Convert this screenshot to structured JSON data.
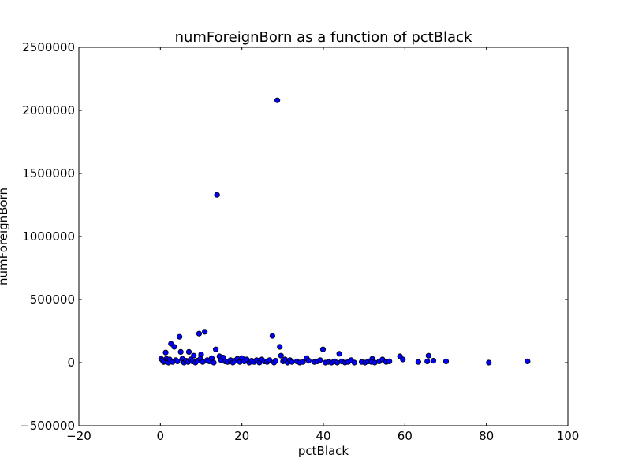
{
  "chart_data": {
    "type": "scatter",
    "title": "numForeignBorn as a function of pctBlack",
    "xlabel": "pctBlack",
    "ylabel": "numForeignBorn",
    "xlim": [
      -20,
      100
    ],
    "ylim": [
      -500000,
      2500000
    ],
    "xticks": [
      -20,
      0,
      20,
      40,
      60,
      80,
      100
    ],
    "yticks": [
      -500000,
      0,
      500000,
      1000000,
      1500000,
      2000000,
      2500000
    ],
    "x_tick_labels": [
      "−20",
      "0",
      "20",
      "40",
      "60",
      "80",
      "100"
    ],
    "y_tick_labels": [
      "−500000",
      "0",
      "500000",
      "1000000",
      "1500000",
      "2000000",
      "2500000"
    ],
    "grid": false,
    "marker_color": "#0000ff",
    "marker_edge": "#000000",
    "points": [
      [
        28.7,
        2080000
      ],
      [
        13.9,
        1330000
      ],
      [
        10.9,
        245000
      ],
      [
        9.5,
        230000
      ],
      [
        27.5,
        212000
      ],
      [
        4.7,
        205000
      ],
      [
        2.6,
        150000
      ],
      [
        3.4,
        125000
      ],
      [
        29.3,
        125000
      ],
      [
        13.6,
        105000
      ],
      [
        39.9,
        105000
      ],
      [
        5.0,
        85000
      ],
      [
        7.0,
        85000
      ],
      [
        1.3,
        80000
      ],
      [
        43.9,
        70000
      ],
      [
        10.0,
        65000
      ],
      [
        8.2,
        55000
      ],
      [
        14.5,
        50000
      ],
      [
        29.6,
        55000
      ],
      [
        58.8,
        50000
      ],
      [
        65.8,
        55000
      ],
      [
        35.9,
        35000
      ],
      [
        52.0,
        30000
      ],
      [
        59.5,
        25000
      ],
      [
        0.2,
        30000
      ],
      [
        0.5,
        20000
      ],
      [
        0.8,
        5000
      ],
      [
        1.0,
        10000
      ],
      [
        1.5,
        30000
      ],
      [
        1.8,
        15000
      ],
      [
        2.0,
        0
      ],
      [
        2.3,
        25000
      ],
      [
        3.0,
        5000
      ],
      [
        3.8,
        20000
      ],
      [
        4.2,
        10000
      ],
      [
        5.4,
        30000
      ],
      [
        5.8,
        0
      ],
      [
        6.3,
        15000
      ],
      [
        6.8,
        5000
      ],
      [
        7.4,
        25000
      ],
      [
        7.9,
        10000
      ],
      [
        8.6,
        0
      ],
      [
        9.1,
        15000
      ],
      [
        9.8,
        30000
      ],
      [
        10.4,
        5000
      ],
      [
        11.5,
        20000
      ],
      [
        12.0,
        10000
      ],
      [
        12.6,
        35000
      ],
      [
        13.1,
        0
      ],
      [
        14.9,
        20000
      ],
      [
        15.4,
        40000
      ],
      [
        15.9,
        10000
      ],
      [
        16.5,
        5000
      ],
      [
        17.2,
        20000
      ],
      [
        17.8,
        0
      ],
      [
        18.3,
        15000
      ],
      [
        18.9,
        30000
      ],
      [
        19.5,
        5000
      ],
      [
        20.0,
        35000
      ],
      [
        20.6,
        10000
      ],
      [
        21.2,
        25000
      ],
      [
        21.8,
        0
      ],
      [
        22.4,
        15000
      ],
      [
        23.0,
        5000
      ],
      [
        23.6,
        20000
      ],
      [
        24.3,
        0
      ],
      [
        24.9,
        25000
      ],
      [
        25.5,
        10000
      ],
      [
        26.2,
        5000
      ],
      [
        26.8,
        20000
      ],
      [
        27.9,
        0
      ],
      [
        28.3,
        15000
      ],
      [
        30.1,
        10000
      ],
      [
        30.6,
        25000
      ],
      [
        31.2,
        0
      ],
      [
        31.8,
        20000
      ],
      [
        32.3,
        5000
      ],
      [
        33.5,
        10000
      ],
      [
        34.2,
        0
      ],
      [
        35.0,
        5000
      ],
      [
        36.4,
        15000
      ],
      [
        37.8,
        5000
      ],
      [
        38.5,
        10000
      ],
      [
        39.2,
        20000
      ],
      [
        40.5,
        0
      ],
      [
        41.2,
        5000
      ],
      [
        42.0,
        0
      ],
      [
        42.7,
        10000
      ],
      [
        43.4,
        0
      ],
      [
        44.5,
        10000
      ],
      [
        45.3,
        0
      ],
      [
        46.1,
        5000
      ],
      [
        46.8,
        20000
      ],
      [
        47.6,
        0
      ],
      [
        49.4,
        5000
      ],
      [
        50.2,
        0
      ],
      [
        51.0,
        10000
      ],
      [
        51.8,
        5000
      ],
      [
        52.6,
        0
      ],
      [
        53.7,
        10000
      ],
      [
        54.5,
        25000
      ],
      [
        55.4,
        5000
      ],
      [
        56.2,
        10000
      ],
      [
        63.3,
        5000
      ],
      [
        65.5,
        10000
      ],
      [
        67.0,
        15000
      ],
      [
        70.1,
        10000
      ],
      [
        80.6,
        0
      ],
      [
        90.1,
        10000
      ]
    ]
  }
}
